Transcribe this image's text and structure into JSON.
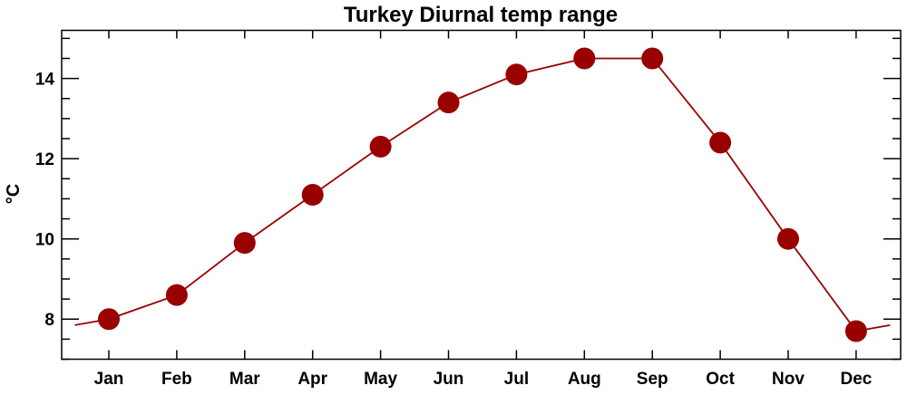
{
  "chart_data": {
    "type": "line",
    "title": "Turkey Diurnal temp range",
    "xlabel": "",
    "ylabel": "°C",
    "categories": [
      "Jan",
      "Feb",
      "Mar",
      "Apr",
      "May",
      "Jun",
      "Jul",
      "Aug",
      "Sep",
      "Oct",
      "Nov",
      "Dec"
    ],
    "values": [
      8.0,
      8.6,
      9.9,
      11.1,
      12.3,
      13.4,
      14.1,
      14.5,
      14.5,
      12.4,
      10.0,
      7.7
    ],
    "ylim": [
      7.0,
      15.2
    ],
    "yticks": [
      8,
      10,
      12,
      14
    ],
    "yminor_step": 0.5,
    "grid": false,
    "markers": "filled-circle",
    "line_wraps_around_year": true,
    "colors": {
      "series": "#990000",
      "axes": "#000000"
    }
  }
}
